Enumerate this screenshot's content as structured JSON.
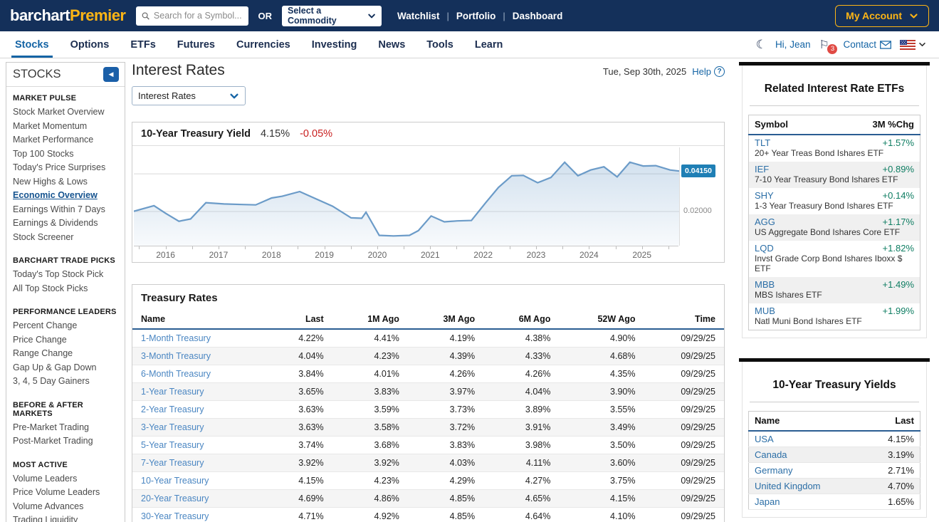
{
  "topbar": {
    "logo_primary": "barchart",
    "logo_accent": "Premier",
    "search_placeholder": "Search for a Symbol...",
    "or_label": "OR",
    "commodity_select": "Select a Commodity",
    "links": [
      "Watchlist",
      "Portfolio",
      "Dashboard"
    ],
    "account_button": "My Account"
  },
  "navbar": {
    "items": [
      {
        "label": "Stocks",
        "active": true
      },
      {
        "label": "Options",
        "active": false
      },
      {
        "label": "ETFs",
        "active": false
      },
      {
        "label": "Futures",
        "active": false
      },
      {
        "label": "Currencies",
        "active": false
      },
      {
        "label": "Investing",
        "active": false
      },
      {
        "label": "News",
        "active": false
      },
      {
        "label": "Tools",
        "active": false
      },
      {
        "label": "Learn",
        "active": false
      }
    ],
    "greeting": "Hi, Jean",
    "notification_count": "3",
    "contact_label": "Contact"
  },
  "sidebar": {
    "title": "STOCKS",
    "sections": [
      {
        "header": "MARKET PULSE",
        "items": [
          "Stock Market Overview",
          "Market Momentum",
          "Market Performance",
          "Top 100 Stocks",
          "Today's Price Surprises",
          "New Highs & Lows",
          "Economic Overview",
          "Earnings Within 7 Days",
          "Earnings & Dividends",
          "Stock Screener"
        ]
      },
      {
        "header": "BARCHART TRADE PICKS",
        "items": [
          "Today's Top Stock Pick",
          "All Top Stock Picks"
        ]
      },
      {
        "header": "PERFORMANCE LEADERS",
        "items": [
          "Percent Change",
          "Price Change",
          "Range Change",
          "Gap Up & Gap Down",
          "3, 4, 5 Day Gainers"
        ]
      },
      {
        "header": "BEFORE & AFTER MARKETS",
        "items": [
          "Pre-Market Trading",
          "Post-Market Trading"
        ]
      },
      {
        "header": "MOST ACTIVE",
        "items": [
          "Volume Leaders",
          "Price Volume Leaders",
          "Volume Advances",
          "Trading Liquidity"
        ]
      }
    ],
    "active_item": "Economic Overview"
  },
  "main": {
    "title": "Interest Rates",
    "date": "Tue, Sep 30th, 2025",
    "help_label": "Help",
    "view_select_value": "Interest Rates",
    "chart_card": {
      "title": "10-Year Treasury Yield",
      "last": "4.15%",
      "change": "-0.05%",
      "last_axis_label": "0.04150",
      "grid_axis_label": "0.02000"
    },
    "treasury_table": {
      "title": "Treasury Rates",
      "columns": [
        "Name",
        "Last",
        "1M Ago",
        "3M Ago",
        "6M Ago",
        "52W Ago",
        "Time"
      ],
      "rows": [
        [
          "1-Month Treasury",
          "4.22%",
          "4.41%",
          "4.19%",
          "4.38%",
          "4.90%",
          "09/29/25"
        ],
        [
          "3-Month Treasury",
          "4.04%",
          "4.23%",
          "4.39%",
          "4.33%",
          "4.68%",
          "09/29/25"
        ],
        [
          "6-Month Treasury",
          "3.84%",
          "4.01%",
          "4.26%",
          "4.26%",
          "4.35%",
          "09/29/25"
        ],
        [
          "1-Year Treasury",
          "3.65%",
          "3.83%",
          "3.97%",
          "4.04%",
          "3.90%",
          "09/29/25"
        ],
        [
          "2-Year Treasury",
          "3.63%",
          "3.59%",
          "3.73%",
          "3.89%",
          "3.55%",
          "09/29/25"
        ],
        [
          "3-Year Treasury",
          "3.63%",
          "3.58%",
          "3.72%",
          "3.91%",
          "3.49%",
          "09/29/25"
        ],
        [
          "5-Year Treasury",
          "3.74%",
          "3.68%",
          "3.83%",
          "3.98%",
          "3.50%",
          "09/29/25"
        ],
        [
          "7-Year Treasury",
          "3.92%",
          "3.92%",
          "4.03%",
          "4.11%",
          "3.60%",
          "09/29/25"
        ],
        [
          "10-Year Treasury",
          "4.15%",
          "4.23%",
          "4.29%",
          "4.27%",
          "3.75%",
          "09/29/25"
        ],
        [
          "20-Year Treasury",
          "4.69%",
          "4.86%",
          "4.85%",
          "4.65%",
          "4.15%",
          "09/29/25"
        ],
        [
          "30-Year Treasury",
          "4.71%",
          "4.92%",
          "4.85%",
          "4.64%",
          "4.10%",
          "09/29/25"
        ]
      ]
    }
  },
  "chart_data": {
    "type": "area",
    "title": "10-Year Treasury Yield",
    "series": [
      {
        "name": "10-Year Treasury Yield",
        "x": [
          2015.4,
          2015.78,
          2016.0,
          2016.25,
          2016.47,
          2016.76,
          2017.1,
          2017.45,
          2017.7,
          2018.0,
          2018.2,
          2018.53,
          2018.8,
          2019.15,
          2019.5,
          2019.7,
          2019.78,
          2020.03,
          2020.3,
          2020.6,
          2020.77,
          2021.01,
          2021.26,
          2021.5,
          2021.77,
          2022.04,
          2022.28,
          2022.53,
          2022.75,
          2023.02,
          2023.27,
          2023.53,
          2023.78,
          2024.02,
          2024.27,
          2024.52,
          2024.76,
          2025.01,
          2025.25,
          2025.52,
          2025.69
        ],
        "y": [
          0.0201,
          0.0231,
          0.019,
          0.0148,
          0.016,
          0.0247,
          0.024,
          0.0237,
          0.0235,
          0.0272,
          0.0281,
          0.0306,
          0.0272,
          0.0228,
          0.0166,
          0.0164,
          0.0196,
          0.0073,
          0.007,
          0.0073,
          0.0098,
          0.0176,
          0.0145,
          0.015,
          0.0152,
          0.0247,
          0.0328,
          0.039,
          0.0392,
          0.0353,
          0.0381,
          0.0462,
          0.039,
          0.0421,
          0.0438,
          0.0384,
          0.0462,
          0.0442,
          0.0444,
          0.0421,
          0.0415
        ]
      }
    ],
    "xlabel": "",
    "ylabel": "",
    "xlim": [
      2015.4,
      2025.69
    ],
    "ylim": [
      0.0018,
      0.0541
    ],
    "x_ticks": [
      2016,
      2017,
      2018,
      2019,
      2020,
      2021,
      2022,
      2023,
      2024,
      2025
    ],
    "gridlines": [
      0.02,
      0.04
    ],
    "last_value": 0.0415,
    "legend": "none",
    "line_color": "#6b9bc8"
  },
  "right_panel": {
    "etf_card": {
      "title": "Related Interest Rate ETFs",
      "columns": [
        "Symbol",
        "3M %Chg"
      ],
      "rows": [
        {
          "symbol": "TLT",
          "chg": "+1.57%",
          "desc": "20+ Year Treas Bond Ishares ETF"
        },
        {
          "symbol": "IEF",
          "chg": "+0.89%",
          "desc": "7-10 Year Treasury Bond Ishares ETF"
        },
        {
          "symbol": "SHY",
          "chg": "+0.14%",
          "desc": "1-3 Year Treasury Bond Ishares ETF"
        },
        {
          "symbol": "AGG",
          "chg": "+1.17%",
          "desc": "US Aggregate Bond Ishares Core ETF"
        },
        {
          "symbol": "LQD",
          "chg": "+1.82%",
          "desc": "Invst Grade Corp Bond Ishares Iboxx $ ETF"
        },
        {
          "symbol": "MBB",
          "chg": "+1.49%",
          "desc": "MBS Ishares ETF"
        },
        {
          "symbol": "MUB",
          "chg": "+1.99%",
          "desc": "Natl Muni Bond Ishares ETF"
        }
      ]
    },
    "yields_card": {
      "title": "10-Year Treasury Yields",
      "columns": [
        "Name",
        "Last"
      ],
      "rows": [
        {
          "name": "USA",
          "last": "4.15%"
        },
        {
          "name": "Canada",
          "last": "3.19%"
        },
        {
          "name": "Germany",
          "last": "2.71%"
        },
        {
          "name": "United Kingdom",
          "last": "4.70%"
        },
        {
          "name": "Japan",
          "last": "1.65%"
        }
      ]
    }
  },
  "colors": {
    "topbar_navy": "#14305a",
    "gold": "#fdb515",
    "link_blue": "#1464a5",
    "table_link_blue": "#4a86c2",
    "positive_green": "#0e7d62",
    "negative_red": "#c81e1e",
    "last_box_blue": "#1f7fb5",
    "stripe_gray": "#f5f5f5"
  }
}
